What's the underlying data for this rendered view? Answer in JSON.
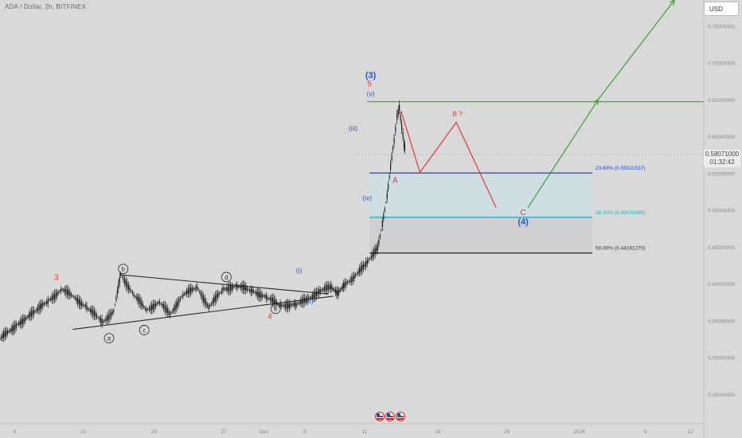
{
  "header": {
    "symbol_title": "ADA / Dollar, 2h, BITFINEX",
    "currency": "USD"
  },
  "price_tag": {
    "price": "0.58071000",
    "countdown": "01:32:42"
  },
  "colors": {
    "background": "#d9d9d9",
    "candle": "#1a1a1a",
    "wave_red": "#e53935",
    "wave_blue": "#1e5bd6",
    "green": "#3aa335",
    "fib_236": "#1e3fd6",
    "fib_382": "#19b5c4",
    "fib_500": "#333333"
  },
  "chart_data": {
    "type": "line",
    "title": "ADA / Dollar, 2h, BITFINEX",
    "xlabel": "",
    "ylabel": "",
    "ylim": [
      0.21,
      0.785
    ],
    "x_ticks": [
      "6",
      "13",
      "20",
      "27",
      "Dec",
      "5",
      "11",
      "18",
      "25",
      "2024",
      "8",
      "12"
    ],
    "y_ticks": [
      "0.25000000",
      "0.30000000",
      "0.35000000",
      "0.40000000",
      "0.45000000",
      "0.50000000",
      "0.55000000",
      "0.60000000",
      "0.65000000",
      "0.70000000",
      "0.75000000"
    ],
    "grid": false,
    "series": [
      {
        "values": [
          [
            0,
            0.325
          ],
          [
            1.5,
            0.345
          ],
          [
            3,
            0.362
          ],
          [
            4.2,
            0.378
          ],
          [
            5.3,
            0.392
          ],
          [
            6.3,
            0.382
          ],
          [
            7.5,
            0.366
          ],
          [
            8.8,
            0.348
          ],
          [
            9.7,
            0.363
          ],
          [
            10.3,
            0.412
          ],
          [
            11.4,
            0.385
          ],
          [
            12.5,
            0.364
          ],
          [
            13.6,
            0.375
          ],
          [
            14.5,
            0.358
          ],
          [
            15.6,
            0.385
          ],
          [
            16.8,
            0.395
          ],
          [
            17.8,
            0.368
          ],
          [
            19,
            0.392
          ],
          [
            20.2,
            0.397
          ],
          [
            21.5,
            0.39
          ],
          [
            22.7,
            0.382
          ],
          [
            23.9,
            0.37
          ],
          [
            25.2,
            0.372
          ],
          [
            26.2,
            0.378
          ],
          [
            27.2,
            0.39
          ],
          [
            28.2,
            0.395
          ],
          [
            28.8,
            0.388
          ],
          [
            29.4,
            0.398
          ],
          [
            30.1,
            0.408
          ],
          [
            31.2,
            0.426
          ],
          [
            32.2,
            0.45
          ],
          [
            32.6,
            0.48
          ],
          [
            33.0,
            0.52
          ],
          [
            33.3,
            0.558
          ],
          [
            33.6,
            0.595
          ],
          [
            33.85,
            0.625
          ],
          [
            34.05,
            0.64
          ],
          [
            34.25,
            0.612
          ],
          [
            34.45,
            0.59
          ],
          [
            34.55,
            0.582
          ]
        ]
      }
    ],
    "fib_levels": [
      {
        "label": "23.60% (0.55021537)",
        "value": 0.55021537
      },
      {
        "label": "38.20% (0.49015480)",
        "value": 0.4901548
      },
      {
        "label": "50.00% (0.44161270)",
        "value": 0.4416127
      }
    ],
    "horizontal_line": 0.647,
    "triangle": {
      "upper": [
        [
          10.3,
          0.412
        ],
        [
          28.0,
          0.386
        ]
      ],
      "lower": [
        [
          6.2,
          0.338
        ],
        [
          28.4,
          0.383
        ]
      ]
    },
    "projection_red": [
      [
        34.2,
        0.634
      ],
      [
        35.8,
        0.551
      ],
      [
        38.9,
        0.619
      ],
      [
        42.3,
        0.503
      ]
    ],
    "projection_green": [
      [
        45.0,
        0.503
      ],
      [
        51.0,
        0.65
      ],
      [
        57.5,
        0.785
      ]
    ],
    "annotations": [
      {
        "text": "3",
        "x": 4.8,
        "y": 0.405,
        "color": "red"
      },
      {
        "text": "4",
        "x": 23.0,
        "y": 0.352,
        "color": "red"
      },
      {
        "text": "(i)",
        "x": 25.5,
        "y": 0.415,
        "color": "blue"
      },
      {
        "text": "(ii)",
        "x": 26.4,
        "y": 0.373,
        "color": "blue"
      },
      {
        "text": "(iii)",
        "x": 30.1,
        "y": 0.608,
        "color": "blue"
      },
      {
        "text": "(iv)",
        "x": 31.3,
        "y": 0.513,
        "color": "blue"
      },
      {
        "text": "(v)",
        "x": 31.6,
        "y": 0.655,
        "color": "blue"
      },
      {
        "text": "5",
        "x": 31.5,
        "y": 0.668,
        "color": "red"
      },
      {
        "text": "(3)",
        "x": 31.6,
        "y": 0.679,
        "color": "blue"
      },
      {
        "text": "A",
        "x": 33.7,
        "y": 0.537,
        "color": "red"
      },
      {
        "text": "B ?",
        "x": 39.0,
        "y": 0.627,
        "color": "red"
      },
      {
        "text": "C",
        "x": 44.6,
        "y": 0.493,
        "color": "red"
      },
      {
        "text": "(4)",
        "x": 44.6,
        "y": 0.48,
        "color": "blue"
      }
    ],
    "circled_labels": [
      {
        "text": "a",
        "x": 9.3,
        "y": 0.326
      },
      {
        "text": "b",
        "x": 10.5,
        "y": 0.42
      },
      {
        "text": "c",
        "x": 12.3,
        "y": 0.337
      },
      {
        "text": "d",
        "x": 19.3,
        "y": 0.409
      },
      {
        "text": "e",
        "x": 23.5,
        "y": 0.366
      }
    ]
  }
}
